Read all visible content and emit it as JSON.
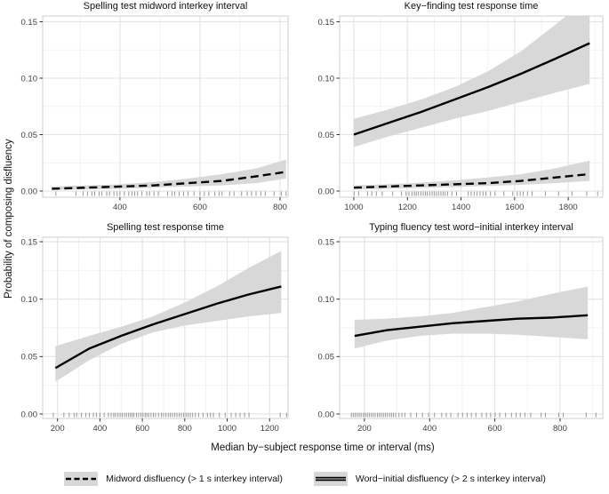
{
  "figure": {
    "y_label": "Probability of composing disfluency",
    "x_label": "Median by−subject response time or interval (ms)",
    "colors": {
      "band": "#d8d8d8",
      "line": "#000000",
      "grid_major": "#e3e3e3",
      "grid_minor": "#f1f1f1",
      "border": "#cfcfcf",
      "tick": "#333333",
      "rug": "#969696",
      "tick_text": "#404040"
    }
  },
  "legend": {
    "items": [
      {
        "id": "midword",
        "line_style": "dashed",
        "label": "Midword disfluency (> 1 s interkey interval)"
      },
      {
        "id": "word-initial",
        "line_style": "double-solid",
        "label": "Word−initial disfluency (> 2 s interkey interval)"
      }
    ]
  },
  "chart_data": [
    {
      "type": "line",
      "id": "spelling-midword-interval",
      "title": "Spelling test midword interkey interval",
      "xlim": [
        207,
        820
      ],
      "ylim": [
        -0.0055,
        0.1551
      ],
      "x_ticks": [
        400,
        600,
        800
      ],
      "x_tick_labels": [
        "400",
        "600",
        "800"
      ],
      "x_minor": [
        300,
        500,
        700
      ],
      "y_ticks": [
        0,
        0.05,
        0.1,
        0.15
      ],
      "y_tick_labels": [
        "0.00",
        "0.05",
        "0.10",
        "0.15"
      ],
      "y_minor": [
        0.025,
        0.075,
        0.125
      ],
      "series": [
        {
          "name": "midword-disfluency",
          "style": "dashed",
          "x": [
            230,
            315,
            400,
            485,
            570,
            655,
            740,
            815
          ],
          "y": [
            0.002,
            0.003,
            0.004,
            0.005,
            0.007,
            0.009,
            0.013,
            0.017
          ],
          "lo": [
            0.001,
            0.0015,
            0.002,
            0.003,
            0.004,
            0.005,
            0.007,
            0.011
          ],
          "hi": [
            0.004,
            0.005,
            0.006,
            0.008,
            0.011,
            0.015,
            0.02,
            0.028
          ]
        }
      ],
      "rug": [
        240,
        290,
        308,
        319,
        330,
        337,
        348,
        355,
        367,
        374,
        385,
        393,
        400,
        411,
        422,
        430,
        437,
        444,
        455,
        467,
        474,
        485,
        496,
        519,
        530,
        537,
        548,
        559,
        570,
        585,
        600,
        611,
        622,
        637,
        648,
        655,
        674,
        685,
        704,
        718,
        729,
        740,
        752,
        763,
        785,
        803,
        815
      ]
    },
    {
      "type": "line",
      "id": "key-finding-rt",
      "title": "Key−finding test response time",
      "xlim": [
        947,
        1929
      ],
      "ylim": [
        -0.0055,
        0.1551
      ],
      "x_ticks": [
        1000,
        1200,
        1400,
        1600,
        1800
      ],
      "x_tick_labels": [
        "1000",
        "1200",
        "1400",
        "1600",
        "1800"
      ],
      "x_minor": [
        1100,
        1300,
        1500,
        1700,
        1900
      ],
      "y_ticks": [
        0,
        0.05,
        0.1,
        0.15
      ],
      "y_tick_labels": [
        "0.00",
        "0.05",
        "0.10",
        "0.15"
      ],
      "y_minor": [
        0.025,
        0.075,
        0.125
      ],
      "series": [
        {
          "name": "word-initial-disfluency",
          "style": "solid",
          "x": [
            1000,
            1125,
            1250,
            1375,
            1500,
            1625,
            1750,
            1880
          ],
          "y": [
            0.05,
            0.06,
            0.07,
            0.081,
            0.092,
            0.104,
            0.117,
            0.131
          ],
          "lo": [
            0.039,
            0.048,
            0.056,
            0.064,
            0.071,
            0.079,
            0.087,
            0.095
          ],
          "hi": [
            0.064,
            0.072,
            0.081,
            0.092,
            0.106,
            0.124,
            0.147,
            0.172
          ]
        },
        {
          "name": "midword-disfluency",
          "style": "dashed",
          "x": [
            1000,
            1125,
            1250,
            1375,
            1500,
            1625,
            1750,
            1880
          ],
          "y": [
            0.003,
            0.004,
            0.005,
            0.006,
            0.007,
            0.009,
            0.012,
            0.015
          ],
          "lo": [
            0.0015,
            0.002,
            0.0028,
            0.0035,
            0.0045,
            0.0055,
            0.007,
            0.009
          ],
          "hi": [
            0.005,
            0.006,
            0.0075,
            0.0095,
            0.012,
            0.015,
            0.02,
            0.027
          ]
        }
      ],
      "rug": [
        1001,
        1018,
        1051,
        1067,
        1084,
        1106,
        1145,
        1178,
        1195,
        1206,
        1217,
        1226,
        1233,
        1241,
        1250,
        1259,
        1267,
        1274,
        1283,
        1292,
        1300,
        1308,
        1316,
        1325,
        1333,
        1341,
        1350,
        1366,
        1383,
        1427,
        1438,
        1449,
        1460,
        1471,
        1482,
        1493,
        1510,
        1527,
        1560,
        1593,
        1610,
        1621,
        1632,
        1648,
        1665,
        1715,
        1764,
        1814,
        1869,
        1910
      ]
    },
    {
      "type": "line",
      "id": "spelling-rt",
      "title": "Spelling test response time",
      "xlim": [
        130,
        1287
      ],
      "ylim": [
        -0.0039,
        0.1539
      ],
      "x_ticks": [
        200,
        400,
        600,
        800,
        1000,
        1200
      ],
      "x_tick_labels": [
        "200",
        "400",
        "600",
        "800",
        "1000",
        "1200"
      ],
      "x_minor": [
        300,
        500,
        700,
        900,
        1100
      ],
      "y_ticks": [
        0,
        0.05,
        0.1,
        0.15
      ],
      "y_tick_labels": [
        "0.00",
        "0.05",
        "0.10",
        "0.15"
      ],
      "y_minor": [
        0.025,
        0.075,
        0.125
      ],
      "series": [
        {
          "name": "word-initial-disfluency",
          "style": "solid",
          "x": [
            190,
            350,
            500,
            650,
            800,
            950,
            1100,
            1255
          ],
          "y": [
            0.04,
            0.057,
            0.068,
            0.078,
            0.087,
            0.096,
            0.104,
            0.111
          ],
          "lo": [
            0.028,
            0.047,
            0.061,
            0.071,
            0.077,
            0.081,
            0.085,
            0.088
          ],
          "hi": [
            0.059,
            0.068,
            0.076,
            0.085,
            0.097,
            0.111,
            0.127,
            0.142
          ]
        }
      ],
      "rug": [
        180,
        230,
        255,
        278,
        290,
        313,
        334,
        350,
        369,
        383,
        400,
        420,
        440,
        453,
        465,
        474,
        485,
        495,
        505,
        516,
        525,
        535,
        544,
        552,
        560,
        572,
        582,
        593,
        603,
        613,
        621,
        630,
        641,
        652,
        662,
        676,
        690,
        700,
        711,
        722,
        732,
        742,
        753,
        763,
        774,
        784,
        795,
        806,
        816,
        826,
        837,
        850,
        865,
        886,
        907,
        921,
        935,
        963,
        991,
        1019,
        1040,
        1061,
        1082,
        1103,
        1250,
        1280
      ]
    },
    {
      "type": "line",
      "id": "typing-fluency-word-initial-interval",
      "title": "Typing fluency test word−initial interkey interval",
      "xlim": [
        124,
        931
      ],
      "ylim": [
        -0.0039,
        0.1539
      ],
      "x_ticks": [
        200,
        400,
        600,
        800
      ],
      "x_tick_labels": [
        "200",
        "400",
        "600",
        "800"
      ],
      "x_minor": [
        300,
        500,
        700,
        900
      ],
      "y_ticks": [
        0,
        0.05,
        0.1,
        0.15
      ],
      "y_tick_labels": [
        "0.00",
        "0.05",
        "0.10",
        "0.15"
      ],
      "y_minor": [
        0.025,
        0.075,
        0.125
      ],
      "series": [
        {
          "name": "word-initial-disfluency",
          "style": "solid",
          "x": [
            170,
            270,
            370,
            470,
            570,
            670,
            780,
            885
          ],
          "y": [
            0.068,
            0.073,
            0.076,
            0.079,
            0.081,
            0.083,
            0.084,
            0.086
          ],
          "lo": [
            0.057,
            0.064,
            0.068,
            0.07,
            0.07,
            0.069,
            0.067,
            0.065
          ],
          "hi": [
            0.082,
            0.083,
            0.085,
            0.088,
            0.093,
            0.098,
            0.105,
            0.111
          ]
        }
      ],
      "rug": [
        160,
        166,
        172,
        178,
        184,
        190,
        197,
        203,
        209,
        215,
        221,
        227,
        233,
        240,
        246,
        252,
        258,
        264,
        270,
        277,
        283,
        289,
        296,
        306,
        315,
        324,
        342,
        360,
        378,
        397,
        415,
        437,
        451,
        465,
        487,
        501,
        515,
        528,
        542,
        560,
        574,
        587,
        601,
        615,
        633,
        651,
        665,
        678,
        692,
        710,
        742,
        755,
        796,
        810,
        880,
        910
      ]
    }
  ]
}
